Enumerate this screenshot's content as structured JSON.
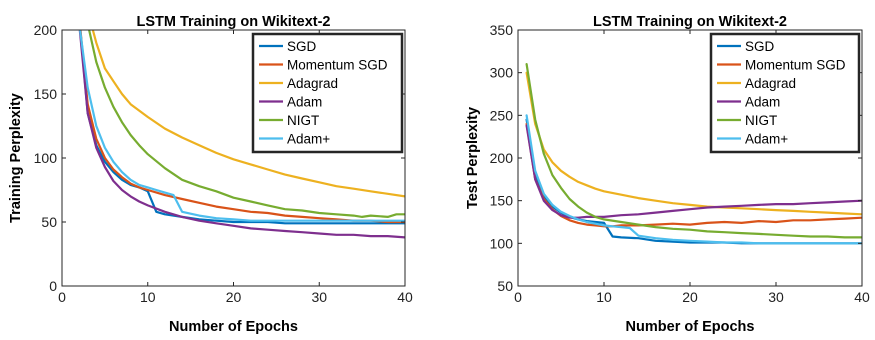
{
  "chart_data": [
    {
      "type": "line",
      "title": "LSTM Training on Wikitext-2",
      "xlabel": "Number of Epochs",
      "ylabel": "Training Perplexity",
      "xlim": [
        0,
        40
      ],
      "ylim": [
        0,
        200
      ],
      "xticks": [
        0,
        10,
        20,
        30,
        40
      ],
      "yticks": [
        0,
        50,
        100,
        150,
        200
      ],
      "grid": false,
      "legend_position": "top-right",
      "series": [
        {
          "name": "SGD",
          "color": "#0072BD",
          "x": [
            2,
            3,
            4,
            5,
            6,
            7,
            8,
            9,
            10,
            11,
            12,
            14,
            16,
            18,
            20,
            22,
            24,
            26,
            28,
            30,
            32,
            34,
            36,
            38,
            40
          ],
          "y": [
            210,
            135,
            110,
            97,
            89,
            83,
            79,
            77,
            74,
            58,
            56,
            54,
            52,
            51,
            50,
            50,
            50,
            49,
            49,
            49,
            49,
            49,
            49,
            49,
            49
          ]
        },
        {
          "name": "Momentum SGD",
          "color": "#D95319",
          "x": [
            2,
            3,
            4,
            5,
            6,
            7,
            8,
            9,
            10,
            12,
            14,
            16,
            18,
            20,
            22,
            24,
            26,
            28,
            30,
            32,
            34,
            36,
            38,
            40
          ],
          "y": [
            210,
            142,
            115,
            100,
            91,
            85,
            80,
            77,
            75,
            71,
            68,
            65,
            62,
            60,
            58,
            57,
            55,
            54,
            53,
            52,
            51,
            51,
            50,
            50
          ]
        },
        {
          "name": "Adagrad",
          "color": "#EDB120",
          "x": [
            3,
            4,
            5,
            6,
            7,
            8,
            9,
            10,
            12,
            14,
            16,
            18,
            20,
            22,
            24,
            26,
            28,
            30,
            32,
            34,
            36,
            38,
            40
          ],
          "y": [
            215,
            190,
            170,
            160,
            150,
            142,
            137,
            132,
            123,
            116,
            110,
            104,
            99,
            95,
            91,
            87,
            84,
            81,
            78,
            76,
            74,
            72,
            70
          ]
        },
        {
          "name": "Adam",
          "color": "#7E2F8E",
          "x": [
            2,
            3,
            4,
            5,
            6,
            7,
            8,
            9,
            10,
            12,
            14,
            16,
            18,
            20,
            22,
            24,
            26,
            28,
            30,
            32,
            34,
            36,
            38,
            40
          ],
          "y": [
            205,
            135,
            108,
            93,
            82,
            75,
            70,
            66,
            63,
            58,
            54,
            51,
            49,
            47,
            45,
            44,
            43,
            42,
            41,
            40,
            40,
            39,
            39,
            38
          ]
        },
        {
          "name": "NIGT",
          "color": "#77AC30",
          "x": [
            3,
            4,
            5,
            6,
            7,
            8,
            9,
            10,
            12,
            14,
            16,
            18,
            20,
            22,
            24,
            26,
            28,
            30,
            32,
            34,
            35,
            36,
            38,
            39,
            40
          ],
          "y": [
            205,
            175,
            155,
            140,
            128,
            118,
            110,
            103,
            92,
            83,
            78,
            74,
            69,
            66,
            63,
            60,
            59,
            57,
            56,
            55,
            54,
            55,
            54,
            56,
            56
          ]
        },
        {
          "name": "Adam+",
          "color": "#4DBEEE",
          "x": [
            2,
            3,
            4,
            5,
            6,
            7,
            8,
            9,
            10,
            11,
            12,
            13,
            14,
            16,
            18,
            20,
            22,
            24,
            26,
            28,
            30,
            32,
            34,
            36,
            38,
            40
          ],
          "y": [
            205,
            155,
            125,
            108,
            97,
            89,
            83,
            79,
            77,
            75,
            73,
            71,
            58,
            55,
            53,
            52,
            51,
            51,
            51,
            51,
            51,
            51,
            51,
            51,
            51,
            51
          ]
        }
      ]
    },
    {
      "type": "line",
      "title": "LSTM Training on Wikitext-2",
      "xlabel": "Number of Epochs",
      "ylabel": "Test Perplexity",
      "xlim": [
        0,
        40
      ],
      "ylim": [
        50,
        350
      ],
      "xticks": [
        0,
        10,
        20,
        30,
        40
      ],
      "yticks": [
        50,
        100,
        150,
        200,
        250,
        300,
        350
      ],
      "grid": false,
      "legend_position": "top-right",
      "series": [
        {
          "name": "SGD",
          "color": "#0072BD",
          "x": [
            1,
            2,
            3,
            4,
            5,
            6,
            7,
            8,
            9,
            10,
            11,
            12,
            14,
            16,
            18,
            20,
            22,
            24,
            26,
            28,
            30,
            32,
            34,
            36,
            38,
            40
          ],
          "y": [
            245,
            180,
            155,
            143,
            136,
            131,
            128,
            126,
            125,
            124,
            108,
            107,
            106,
            103,
            102,
            101,
            101,
            101,
            100,
            100,
            100,
            100,
            100,
            100,
            100,
            100
          ]
        },
        {
          "name": "Momentum SGD",
          "color": "#D95319",
          "x": [
            1,
            2,
            3,
            4,
            5,
            6,
            7,
            8,
            9,
            10,
            11,
            12,
            14,
            16,
            18,
            20,
            22,
            24,
            26,
            28,
            30,
            32,
            34,
            36,
            38,
            40
          ],
          "y": [
            240,
            175,
            152,
            140,
            132,
            127,
            124,
            122,
            121,
            120,
            120,
            121,
            121,
            122,
            123,
            122,
            124,
            125,
            124,
            126,
            125,
            127,
            127,
            128,
            129,
            130
          ]
        },
        {
          "name": "Adagrad",
          "color": "#EDB120",
          "x": [
            1,
            2,
            3,
            4,
            5,
            6,
            7,
            8,
            9,
            10,
            12,
            14,
            16,
            18,
            20,
            22,
            24,
            26,
            28,
            30,
            32,
            34,
            36,
            38,
            40
          ],
          "y": [
            300,
            240,
            210,
            195,
            185,
            178,
            172,
            168,
            164,
            161,
            157,
            153,
            150,
            147,
            145,
            143,
            142,
            141,
            140,
            139,
            138,
            137,
            136,
            135,
            134
          ]
        },
        {
          "name": "Adam",
          "color": "#7E2F8E",
          "x": [
            1,
            2,
            3,
            4,
            5,
            6,
            7,
            8,
            9,
            10,
            12,
            14,
            16,
            18,
            20,
            22,
            24,
            26,
            28,
            30,
            32,
            34,
            36,
            38,
            40
          ],
          "y": [
            238,
            175,
            150,
            139,
            133,
            130,
            130,
            131,
            131,
            131,
            133,
            134,
            136,
            138,
            140,
            142,
            143,
            144,
            145,
            146,
            146,
            147,
            148,
            149,
            150
          ]
        },
        {
          "name": "NIGT",
          "color": "#77AC30",
          "x": [
            1,
            2,
            3,
            4,
            5,
            6,
            7,
            8,
            9,
            10,
            12,
            14,
            16,
            18,
            20,
            22,
            24,
            26,
            28,
            30,
            32,
            34,
            36,
            38,
            40
          ],
          "y": [
            310,
            245,
            205,
            180,
            165,
            152,
            143,
            136,
            131,
            128,
            125,
            122,
            119,
            117,
            116,
            114,
            113,
            112,
            111,
            110,
            109,
            108,
            108,
            107,
            107
          ]
        },
        {
          "name": "Adam+",
          "color": "#4DBEEE",
          "x": [
            1,
            2,
            3,
            4,
            5,
            6,
            7,
            8,
            9,
            10,
            11,
            12,
            13,
            14,
            16,
            18,
            20,
            22,
            24,
            26,
            28,
            30,
            32,
            34,
            36,
            38,
            40
          ],
          "y": [
            250,
            185,
            158,
            145,
            137,
            132,
            128,
            125,
            123,
            121,
            120,
            119,
            118,
            109,
            106,
            104,
            103,
            102,
            101,
            101,
            100,
            100,
            100,
            100,
            100,
            100,
            100
          ]
        }
      ]
    }
  ]
}
